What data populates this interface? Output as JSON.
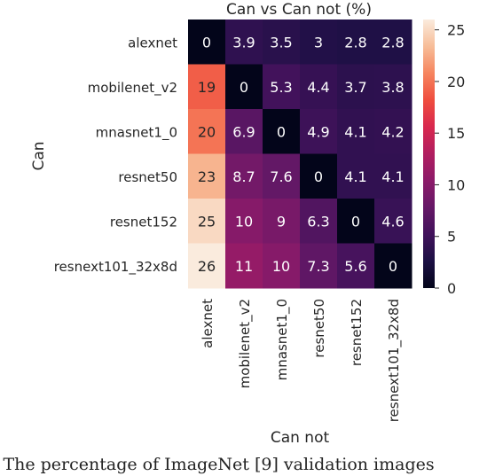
{
  "chart_data": {
    "type": "heatmap",
    "title": "Can vs Can not (%)",
    "ylabel": "Can",
    "xlabel": "Can not",
    "rows": [
      "alexnet",
      "mobilenet_v2",
      "mnasnet1_0",
      "resnet50",
      "resnet152",
      "resnext101_32x8d"
    ],
    "columns": [
      "alexnet",
      "mobilenet_v2",
      "mnasnet1_0",
      "resnet50",
      "resnet152",
      "resnext101_32x8d"
    ],
    "values": [
      [
        0,
        3.9,
        3.5,
        3,
        2.8,
        2.8
      ],
      [
        19,
        0,
        5.3,
        4.4,
        3.7,
        3.8
      ],
      [
        20,
        6.9,
        0,
        4.9,
        4.1,
        4.2
      ],
      [
        23,
        8.7,
        7.6,
        0,
        4.1,
        4.1
      ],
      [
        25,
        10,
        9,
        6.3,
        0,
        4.6
      ],
      [
        26,
        11,
        10,
        7.3,
        5.6,
        0
      ]
    ],
    "colorbar": {
      "min": 0,
      "max": 26,
      "ticks": [
        0,
        5,
        10,
        15,
        20,
        25
      ]
    },
    "colormap": "rocket"
  },
  "caption": ": The percentage of ImageNet [9] validation images"
}
